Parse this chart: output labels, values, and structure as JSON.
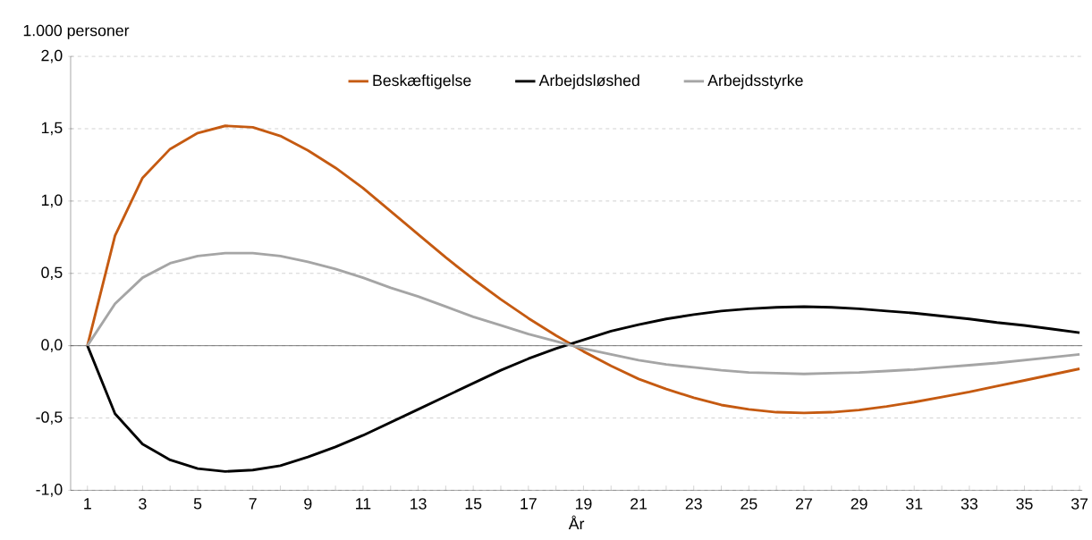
{
  "chart_data": {
    "type": "line",
    "xlabel": "År",
    "ylabel": "1.000 personer",
    "categories": [
      "1",
      null,
      "3",
      null,
      "5",
      null,
      "7",
      null,
      "9",
      null,
      "11",
      null,
      "13",
      null,
      "15",
      null,
      "17",
      null,
      "19",
      null,
      "21",
      null,
      "23",
      null,
      "25",
      null,
      "27",
      null,
      "29",
      null,
      "31",
      null,
      "33",
      null,
      "35",
      null,
      "37"
    ],
    "series": [
      {
        "name": "Beskæftigelse",
        "color": "#c55a11",
        "values": [
          0,
          0.76,
          1.16,
          1.36,
          1.47,
          1.52,
          1.51,
          1.45,
          1.35,
          1.23,
          1.09,
          0.93,
          0.77,
          0.61,
          0.46,
          0.32,
          0.19,
          0.07,
          -0.04,
          -0.14,
          -0.23,
          -0.3,
          -0.36,
          -0.41,
          -0.44,
          -0.46,
          -0.465,
          -0.46,
          -0.445,
          -0.42,
          -0.39,
          -0.355,
          -0.32,
          -0.28,
          -0.24,
          -0.2,
          -0.16
        ]
      },
      {
        "name": "Arbejdsløshed",
        "color": "#000000",
        "values": [
          0,
          -0.47,
          -0.68,
          -0.79,
          -0.85,
          -0.87,
          -0.86,
          -0.83,
          -0.77,
          -0.7,
          -0.62,
          -0.53,
          -0.44,
          -0.35,
          -0.26,
          -0.17,
          -0.09,
          -0.02,
          0.04,
          0.1,
          0.145,
          0.185,
          0.215,
          0.24,
          0.255,
          0.265,
          0.27,
          0.265,
          0.255,
          0.24,
          0.225,
          0.205,
          0.185,
          0.16,
          0.14,
          0.115,
          0.09
        ]
      },
      {
        "name": "Arbejdsstyrke",
        "color": "#a5a5a5",
        "values": [
          0,
          0.29,
          0.47,
          0.57,
          0.62,
          0.64,
          0.64,
          0.62,
          0.58,
          0.53,
          0.47,
          0.4,
          0.34,
          0.27,
          0.2,
          0.14,
          0.08,
          0.03,
          -0.02,
          -0.06,
          -0.1,
          -0.13,
          -0.15,
          -0.17,
          -0.185,
          -0.19,
          -0.195,
          -0.19,
          -0.185,
          -0.175,
          -0.165,
          -0.15,
          -0.135,
          -0.12,
          -0.1,
          -0.08,
          -0.06
        ]
      }
    ],
    "ylim": [
      -1,
      2
    ],
    "yticks": [
      {
        "value": -1,
        "label": "-1,0"
      },
      {
        "value": -0.5,
        "label": "-0,5"
      },
      {
        "value": 0,
        "label": "0,0"
      },
      {
        "value": 0.5,
        "label": "0,5"
      },
      {
        "value": 1,
        "label": "1,0"
      },
      {
        "value": 1.5,
        "label": "1,5"
      },
      {
        "value": 2,
        "label": "2,0"
      }
    ],
    "grid": "y",
    "legend": "top"
  }
}
